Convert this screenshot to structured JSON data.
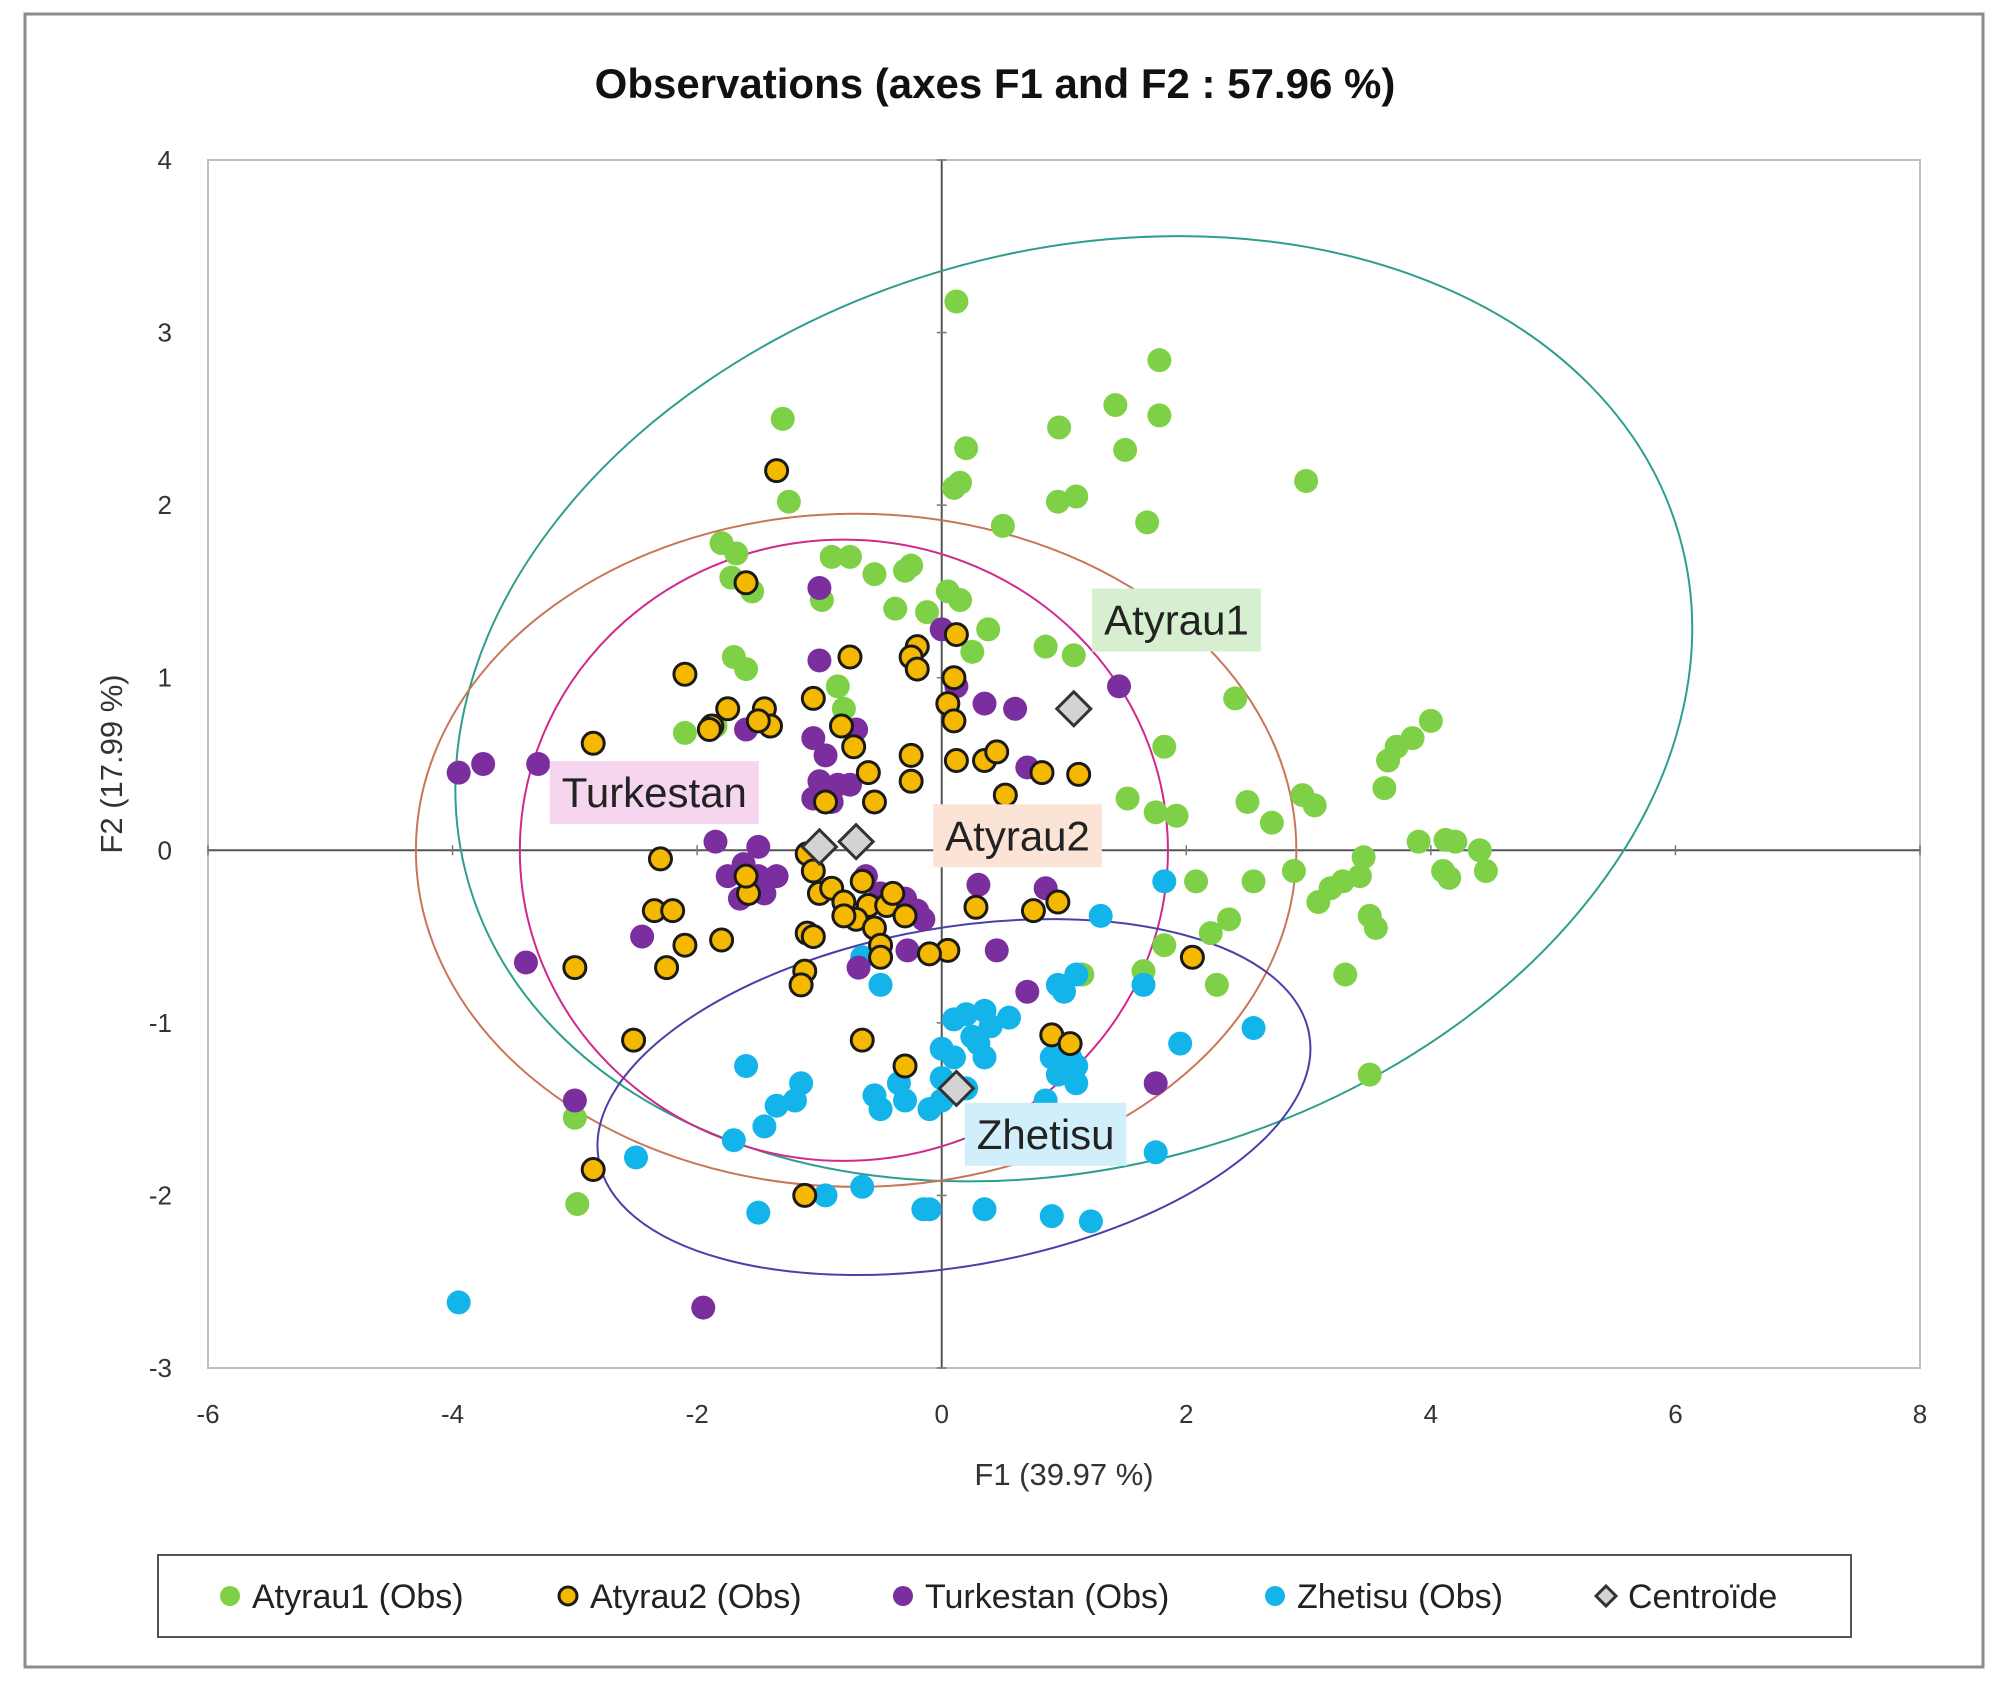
{
  "chart_data": {
    "type": "scatter",
    "title": "Observations (axes F1 and F2 : 57.96 %)",
    "xlabel": "F1 (39.97 %)",
    "ylabel": "F2 (17.99 %)",
    "xlim": [
      -6,
      8
    ],
    "ylim": [
      -3,
      4
    ],
    "xticks": [
      -6,
      -4,
      -2,
      0,
      2,
      4,
      6,
      8
    ],
    "yticks": [
      -3,
      -2,
      -1,
      0,
      1,
      2,
      3,
      4
    ],
    "xtick_labels": [
      "-6",
      "-4",
      "-2",
      "0",
      "2",
      "4",
      "6",
      "8"
    ],
    "ytick_labels": [
      "-3",
      "-2",
      "-1",
      "0",
      "1",
      "2",
      "3",
      "4"
    ],
    "colors": {
      "Atyrau1": "#7ED146",
      "Atyrau2_fill": "#F5B800",
      "Atyrau2_edge": "#1A1A1A",
      "Turkestan": "#7B2F9E",
      "Zhetisu": "#12B4EA",
      "centroid_fill": "#D3D3D3",
      "centroid_edge": "#333333"
    },
    "series": [
      {
        "name": "Atyrau1 (Obs)",
        "key": "Atyrau1",
        "points": [
          [
            0.12,
            3.18
          ],
          [
            1.78,
            2.84
          ],
          [
            1.78,
            2.52
          ],
          [
            1.42,
            2.58
          ],
          [
            1.5,
            2.32
          ],
          [
            0.96,
            2.45
          ],
          [
            0.2,
            2.33
          ],
          [
            0.15,
            2.13
          ],
          [
            0.1,
            2.1
          ],
          [
            -1.3,
            2.5
          ],
          [
            -1.25,
            2.02
          ],
          [
            1.1,
            2.05
          ],
          [
            0.95,
            2.02
          ],
          [
            1.68,
            1.9
          ],
          [
            2.98,
            2.14
          ],
          [
            0.5,
            1.88
          ],
          [
            -1.8,
            1.78
          ],
          [
            -1.68,
            1.72
          ],
          [
            -1.72,
            1.58
          ],
          [
            -1.55,
            1.5
          ],
          [
            -0.9,
            1.7
          ],
          [
            -0.75,
            1.7
          ],
          [
            -0.55,
            1.6
          ],
          [
            -0.3,
            1.62
          ],
          [
            -0.25,
            1.65
          ],
          [
            0.05,
            1.5
          ],
          [
            0.15,
            1.45
          ],
          [
            -0.38,
            1.4
          ],
          [
            -0.12,
            1.38
          ],
          [
            0.38,
            1.28
          ],
          [
            0.25,
            1.15
          ],
          [
            0.85,
            1.18
          ],
          [
            1.08,
            1.13
          ],
          [
            -1.7,
            1.12
          ],
          [
            -1.6,
            1.05
          ],
          [
            -0.98,
            1.45
          ],
          [
            -0.85,
            0.95
          ],
          [
            -0.8,
            0.82
          ],
          [
            -2.1,
            0.68
          ],
          [
            -1.85,
            0.72
          ],
          [
            2.4,
            0.88
          ],
          [
            1.82,
            0.6
          ],
          [
            2.5,
            0.28
          ],
          [
            1.52,
            0.3
          ],
          [
            1.75,
            0.22
          ],
          [
            1.92,
            0.2
          ],
          [
            2.7,
            0.16
          ],
          [
            2.95,
            0.32
          ],
          [
            3.05,
            0.26
          ],
          [
            3.62,
            0.36
          ],
          [
            3.65,
            0.52
          ],
          [
            3.72,
            0.6
          ],
          [
            3.85,
            0.65
          ],
          [
            4.0,
            0.75
          ],
          [
            3.9,
            0.05
          ],
          [
            4.12,
            0.06
          ],
          [
            4.2,
            0.05
          ],
          [
            4.4,
            0.0
          ],
          [
            4.45,
            -0.12
          ],
          [
            4.15,
            -0.16
          ],
          [
            4.1,
            -0.12
          ],
          [
            3.45,
            -0.04
          ],
          [
            3.42,
            -0.15
          ],
          [
            3.28,
            -0.18
          ],
          [
            3.18,
            -0.22
          ],
          [
            3.08,
            -0.3
          ],
          [
            2.88,
            -0.12
          ],
          [
            2.55,
            -0.18
          ],
          [
            2.08,
            -0.18
          ],
          [
            2.35,
            -0.4
          ],
          [
            2.2,
            -0.48
          ],
          [
            1.82,
            -0.55
          ],
          [
            1.65,
            -0.7
          ],
          [
            2.25,
            -0.78
          ],
          [
            3.3,
            -0.72
          ],
          [
            3.55,
            -0.45
          ],
          [
            3.5,
            -0.38
          ],
          [
            3.5,
            -1.3
          ],
          [
            1.15,
            -0.72
          ],
          [
            -3.0,
            -1.55
          ],
          [
            -2.98,
            -2.05
          ]
        ]
      },
      {
        "name": "Atyrau2 (Obs)",
        "key": "Atyrau2",
        "points": [
          [
            -1.35,
            2.2
          ],
          [
            -1.6,
            1.55
          ],
          [
            0.12,
            1.25
          ],
          [
            -0.2,
            1.18
          ],
          [
            -0.25,
            1.12
          ],
          [
            -0.2,
            1.05
          ],
          [
            -0.75,
            1.12
          ],
          [
            0.1,
            1.0
          ],
          [
            -2.1,
            1.02
          ],
          [
            -1.05,
            0.88
          ],
          [
            -1.75,
            0.82
          ],
          [
            -1.45,
            0.82
          ],
          [
            -1.4,
            0.72
          ],
          [
            0.05,
            0.85
          ],
          [
            0.1,
            0.75
          ],
          [
            -1.88,
            0.72
          ],
          [
            -1.9,
            0.7
          ],
          [
            -1.5,
            0.75
          ],
          [
            -2.85,
            0.62
          ],
          [
            -0.82,
            0.72
          ],
          [
            -0.72,
            0.6
          ],
          [
            -0.25,
            0.55
          ],
          [
            0.12,
            0.52
          ],
          [
            0.35,
            0.52
          ],
          [
            0.45,
            0.57
          ],
          [
            -0.6,
            0.45
          ],
          [
            -0.25,
            0.4
          ],
          [
            0.82,
            0.45
          ],
          [
            1.12,
            0.44
          ],
          [
            -0.95,
            0.28
          ],
          [
            -0.55,
            0.28
          ],
          [
            0.52,
            0.32
          ],
          [
            -2.3,
            -0.05
          ],
          [
            -1.1,
            -0.02
          ],
          [
            -1.05,
            -0.12
          ],
          [
            -1.0,
            -0.25
          ],
          [
            -0.9,
            -0.22
          ],
          [
            -0.8,
            -0.3
          ],
          [
            -0.65,
            -0.18
          ],
          [
            -0.6,
            -0.32
          ],
          [
            -0.45,
            -0.32
          ],
          [
            -0.4,
            -0.25
          ],
          [
            -0.3,
            -0.38
          ],
          [
            -0.7,
            -0.4
          ],
          [
            -0.55,
            -0.45
          ],
          [
            -0.8,
            -0.38
          ],
          [
            -2.35,
            -0.35
          ],
          [
            -2.2,
            -0.35
          ],
          [
            -2.1,
            -0.55
          ],
          [
            -2.25,
            -0.68
          ],
          [
            -1.8,
            -0.52
          ],
          [
            -1.58,
            -0.25
          ],
          [
            -1.6,
            -0.15
          ],
          [
            -1.1,
            -0.48
          ],
          [
            -1.05,
            -0.5
          ],
          [
            -1.12,
            -0.7
          ],
          [
            -1.15,
            -0.78
          ],
          [
            -0.5,
            -0.55
          ],
          [
            -0.5,
            -0.62
          ],
          [
            0.05,
            -0.58
          ],
          [
            -0.1,
            -0.6
          ],
          [
            -3.0,
            -0.68
          ],
          [
            0.28,
            -0.33
          ],
          [
            0.75,
            -0.35
          ],
          [
            0.95,
            -0.3
          ],
          [
            2.05,
            -0.62
          ],
          [
            -2.52,
            -1.1
          ],
          [
            -0.65,
            -1.1
          ],
          [
            0.9,
            -1.07
          ],
          [
            1.05,
            -1.12
          ],
          [
            -0.3,
            -1.25
          ],
          [
            -2.85,
            -1.85
          ],
          [
            -1.12,
            -2.0
          ]
        ]
      },
      {
        "name": "Turkestan (Obs)",
        "key": "Turkestan",
        "points": [
          [
            -1.0,
            1.52
          ],
          [
            0.0,
            1.28
          ],
          [
            -1.0,
            1.1
          ],
          [
            0.12,
            0.95
          ],
          [
            0.35,
            0.85
          ],
          [
            0.6,
            0.82
          ],
          [
            1.45,
            0.95
          ],
          [
            -1.6,
            0.7
          ],
          [
            -0.7,
            0.7
          ],
          [
            -1.05,
            0.65
          ],
          [
            -0.95,
            0.55
          ],
          [
            -1.0,
            0.4
          ],
          [
            -0.85,
            0.38
          ],
          [
            -0.75,
            0.38
          ],
          [
            -0.9,
            0.28
          ],
          [
            -1.05,
            0.3
          ],
          [
            0.7,
            0.48
          ],
          [
            -3.95,
            0.45
          ],
          [
            -3.75,
            0.5
          ],
          [
            -3.3,
            0.5
          ],
          [
            -1.85,
            0.05
          ],
          [
            -1.5,
            0.02
          ],
          [
            -1.62,
            -0.08
          ],
          [
            -1.5,
            -0.15
          ],
          [
            -1.75,
            -0.15
          ],
          [
            -1.45,
            -0.25
          ],
          [
            -1.65,
            -0.28
          ],
          [
            -1.35,
            -0.15
          ],
          [
            -0.62,
            -0.15
          ],
          [
            -0.5,
            -0.25
          ],
          [
            -0.3,
            -0.28
          ],
          [
            -0.2,
            -0.35
          ],
          [
            -0.15,
            -0.4
          ],
          [
            0.3,
            -0.2
          ],
          [
            0.85,
            -0.22
          ],
          [
            -2.45,
            -0.5
          ],
          [
            -3.4,
            -0.65
          ],
          [
            -0.28,
            -0.58
          ],
          [
            0.45,
            -0.58
          ],
          [
            0.7,
            -0.82
          ],
          [
            -0.68,
            -0.68
          ],
          [
            -3.0,
            -1.45
          ],
          [
            1.75,
            -1.35
          ],
          [
            -1.95,
            -2.65
          ]
        ]
      },
      {
        "name": "Zhetisu (Obs)",
        "key": "Zhetisu",
        "points": [
          [
            1.82,
            -0.18
          ],
          [
            1.3,
            -0.38
          ],
          [
            -0.65,
            -0.62
          ],
          [
            -0.5,
            -0.78
          ],
          [
            0.95,
            -0.78
          ],
          [
            1.0,
            -0.82
          ],
          [
            1.1,
            -0.72
          ],
          [
            1.65,
            -0.78
          ],
          [
            0.1,
            -0.98
          ],
          [
            0.2,
            -0.95
          ],
          [
            0.35,
            -0.93
          ],
          [
            0.55,
            -0.97
          ],
          [
            0.25,
            -1.08
          ],
          [
            0.4,
            -1.02
          ],
          [
            0.0,
            -1.15
          ],
          [
            0.1,
            -1.2
          ],
          [
            0.35,
            -1.2
          ],
          [
            0.3,
            -1.12
          ],
          [
            0.9,
            -1.2
          ],
          [
            1.05,
            -1.2
          ],
          [
            1.1,
            -1.25
          ],
          [
            0.95,
            -1.3
          ],
          [
            1.1,
            -1.35
          ],
          [
            0.0,
            -1.32
          ],
          [
            0.2,
            -1.38
          ],
          [
            -0.35,
            -1.35
          ],
          [
            -0.3,
            -1.45
          ],
          [
            -0.55,
            -1.42
          ],
          [
            -0.5,
            -1.5
          ],
          [
            -0.1,
            -1.5
          ],
          [
            0.0,
            -1.45
          ],
          [
            0.85,
            -1.45
          ],
          [
            -1.6,
            -1.25
          ],
          [
            -1.15,
            -1.35
          ],
          [
            -1.2,
            -1.45
          ],
          [
            -1.35,
            -1.48
          ],
          [
            -1.45,
            -1.6
          ],
          [
            -1.7,
            -1.68
          ],
          [
            -2.5,
            -1.78
          ],
          [
            1.75,
            -1.75
          ],
          [
            1.95,
            -1.12
          ],
          [
            2.55,
            -1.03
          ],
          [
            -0.65,
            -1.95
          ],
          [
            -0.95,
            -2.0
          ],
          [
            -0.1,
            -2.08
          ],
          [
            0.35,
            -2.08
          ],
          [
            0.9,
            -2.12
          ],
          [
            1.22,
            -2.15
          ],
          [
            -1.5,
            -2.1
          ],
          [
            -3.95,
            -2.62
          ],
          [
            -0.15,
            -2.08
          ]
        ]
      },
      {
        "name": "Centroïde",
        "key": "Centroid",
        "points": [
          [
            1.08,
            0.82
          ],
          [
            -1.0,
            0.02
          ],
          [
            -0.7,
            0.05
          ],
          [
            0.12,
            -1.38
          ]
        ]
      }
    ],
    "ellipses": [
      {
        "group": "Atyrau1",
        "color": "#2E9E8E",
        "cx": 1.08,
        "cy": 0.82,
        "rx": 5.15,
        "ry": 2.65,
        "angle_deg": -16
      },
      {
        "group": "Atyrau2",
        "color": "#C8755A",
        "cx": -0.7,
        "cy": 0.0,
        "rx": 3.6,
        "ry": 1.95,
        "angle_deg": 0
      },
      {
        "group": "Turkestan",
        "color": "#D0288C",
        "cx": -0.8,
        "cy": 0.0,
        "rx": 2.65,
        "ry": 1.8,
        "angle_deg": 0
      },
      {
        "group": "Zhetisu",
        "color": "#4B3FA8",
        "cx": 0.1,
        "cy": -1.43,
        "rx": 2.95,
        "ry": 0.98,
        "angle_deg": -10
      }
    ],
    "group_labels": [
      {
        "text": "Atyrau1",
        "x": 1.92,
        "y": 1.25,
        "bg": "#D6EFD0"
      },
      {
        "text": "Turkestan",
        "x": -2.35,
        "y": 0.25,
        "bg": "#F6D5EE"
      },
      {
        "text": "Atyrau2",
        "x": 0.62,
        "y": 0.0,
        "bg": "#FBE3D6"
      },
      {
        "text": "Zhetisu",
        "x": 0.85,
        "y": -1.73,
        "bg": "#D1EFFA"
      }
    ],
    "legend": [
      {
        "label": "Atyrau1 (Obs)",
        "key": "Atyrau1"
      },
      {
        "label": "Atyrau2 (Obs)",
        "key": "Atyrau2"
      },
      {
        "label": "Turkestan (Obs)",
        "key": "Turkestan"
      },
      {
        "label": "Zhetisu (Obs)",
        "key": "Zhetisu"
      },
      {
        "label": "Centroïde",
        "key": "Centroid"
      }
    ],
    "legend_position": "bottom"
  }
}
